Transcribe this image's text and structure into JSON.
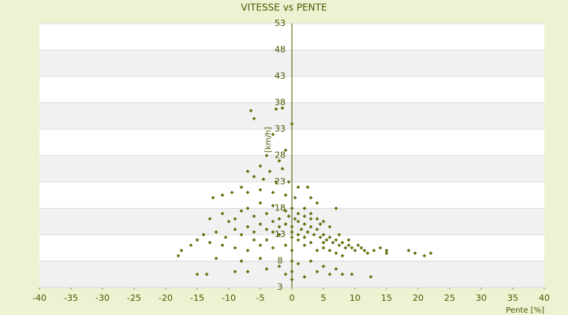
{
  "chart_data": {
    "type": "scatter",
    "title": "VITESSE vs PENTE",
    "x_label": "Pente [%]",
    "y_label": "[km/h]",
    "color": "#6b7a00",
    "xlim": [
      -40,
      40
    ],
    "xticks": [
      -40,
      -35,
      -30,
      -25,
      -20,
      -15,
      -10,
      -5,
      0,
      5,
      10,
      15,
      20,
      25,
      30,
      35,
      40
    ],
    "ylim": [
      3,
      53
    ],
    "yticks": [
      3,
      8,
      13,
      18,
      23,
      28,
      33,
      38,
      43,
      48,
      53
    ],
    "grid": true,
    "x": [
      -6.5,
      -6,
      -1.5,
      -2.5,
      0,
      -3,
      -1,
      -4,
      -2,
      -5,
      -3.5,
      -1.5,
      -7,
      -6,
      -4.5,
      -2.5,
      -0.5,
      1,
      2.5,
      -8,
      -9.5,
      -12.5,
      -11,
      -7,
      -5,
      -3,
      -1,
      0.5,
      3,
      4,
      7,
      -13,
      -11,
      -10,
      -9,
      -8,
      -7,
      -6,
      -5,
      -4,
      -3,
      -2,
      -1,
      0,
      1,
      2,
      3,
      4,
      5,
      6,
      -14,
      -12,
      -10.5,
      -9,
      -8,
      -7,
      -6,
      -5,
      -4,
      -3,
      -2,
      -1,
      0,
      0.5,
      1,
      1.5,
      2,
      2.5,
      3,
      3.5,
      4,
      4.5,
      5,
      5.5,
      6,
      6.5,
      7,
      7.5,
      8,
      8.5,
      9,
      9.5,
      10,
      10.5,
      11,
      11.5,
      12,
      13,
      14,
      15,
      15,
      18.5,
      19.5,
      21,
      22,
      -17.5,
      -16,
      -15,
      -13,
      -11,
      -9,
      -7,
      -5,
      -3,
      -1,
      0,
      1,
      2,
      3,
      4,
      5,
      6,
      7,
      8,
      -12,
      -8,
      -5,
      -2,
      0,
      1,
      3,
      5,
      7,
      -15,
      -13.5,
      -9,
      -7,
      -4,
      -1,
      0,
      0,
      2,
      4,
      6,
      8,
      9.5,
      12.5,
      0,
      0,
      -0.5,
      1,
      2,
      -2,
      -4,
      -6,
      3,
      2,
      -3,
      4.5,
      5,
      -18,
      7.5,
      9
    ],
    "values": [
      36.5,
      35,
      37,
      36.8,
      34,
      32,
      29,
      28,
      27,
      26,
      25,
      25.5,
      25,
      24,
      23.5,
      23,
      23,
      22,
      22,
      22,
      21,
      20,
      20.5,
      21,
      21.5,
      21,
      20.5,
      20,
      20,
      19,
      18,
      16,
      17,
      15.5,
      16,
      17.5,
      18,
      16.5,
      19,
      17,
      18.5,
      16,
      17.5,
      18,
      17,
      16.5,
      17,
      16,
      15.5,
      14.5,
      13,
      13.5,
      12.5,
      14,
      13,
      14.5,
      13.5,
      15,
      14,
      15.5,
      14.5,
      15,
      14.5,
      16,
      15.5,
      14,
      15,
      13.5,
      14.5,
      13,
      14,
      12.5,
      13,
      12,
      12.5,
      11.5,
      12,
      11,
      11.5,
      10.5,
      11,
      10.5,
      10,
      11,
      10.5,
      10,
      9.5,
      10,
      10.5,
      10,
      9.5,
      10,
      9.5,
      9,
      9.5,
      10,
      11,
      12,
      11.5,
      11,
      10.5,
      10,
      11,
      10.5,
      11,
      10,
      12,
      11,
      11.5,
      10,
      10.5,
      10,
      9.5,
      9,
      8.5,
      8,
      8.5,
      7,
      8,
      7.5,
      8,
      7,
      6.5,
      5.5,
      5.5,
      6,
      6,
      6.5,
      5.5,
      6,
      4.5,
      5,
      6,
      5.5,
      5.5,
      5.5,
      5,
      12.5,
      13.5,
      16.5,
      13,
      12.5,
      13,
      12,
      12,
      16,
      18,
      13.5,
      15,
      11.5,
      9,
      13,
      12
    ]
  }
}
